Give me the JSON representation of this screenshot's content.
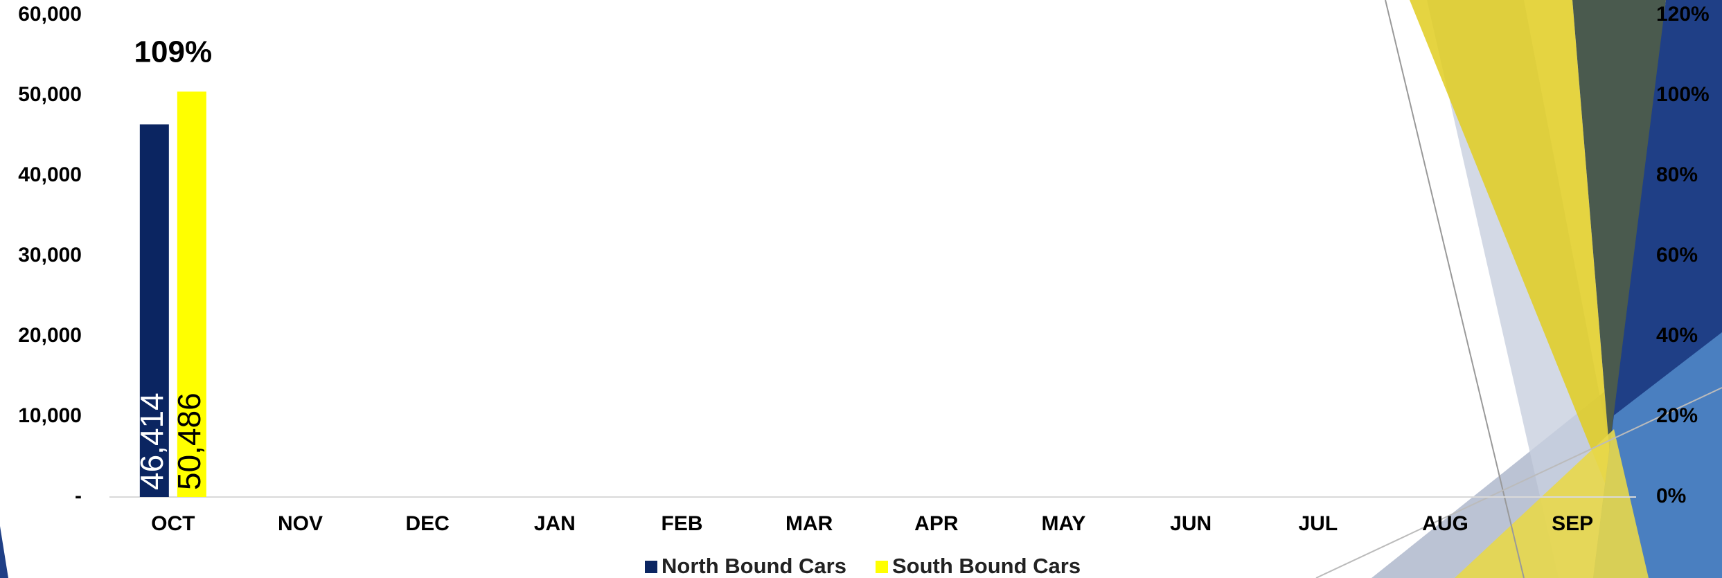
{
  "chart_data": {
    "type": "bar",
    "categories": [
      "OCT",
      "NOV",
      "DEC",
      "JAN",
      "FEB",
      "MAR",
      "APR",
      "MAY",
      "JUN",
      "JUL",
      "AUG",
      "SEP"
    ],
    "series": [
      {
        "name": "North Bound Cars",
        "color": "#0b2561",
        "values": [
          46414,
          null,
          null,
          null,
          null,
          null,
          null,
          null,
          null,
          null,
          null,
          null
        ],
        "value_labels": [
          "46,414",
          null,
          null,
          null,
          null,
          null,
          null,
          null,
          null,
          null,
          null,
          null
        ]
      },
      {
        "name": "South Bound Cars",
        "color": "#ffff00",
        "values": [
          50486,
          null,
          null,
          null,
          null,
          null,
          null,
          null,
          null,
          null,
          null,
          null
        ],
        "value_labels": [
          "50,486",
          null,
          null,
          null,
          null,
          null,
          null,
          null,
          null,
          null,
          null,
          null
        ]
      }
    ],
    "ratio": {
      "axis": "y2",
      "values": [
        109,
        null,
        null,
        null,
        null,
        null,
        null,
        null,
        null,
        null,
        null,
        null
      ],
      "value_labels": [
        "109%",
        null,
        null,
        null,
        null,
        null,
        null,
        null,
        null,
        null,
        null,
        null
      ]
    },
    "ylim": [
      0,
      60000
    ],
    "yticks": [
      {
        "value": 0,
        "label": "-"
      },
      {
        "value": 10000,
        "label": "10,000"
      },
      {
        "value": 20000,
        "label": "20,000"
      },
      {
        "value": 30000,
        "label": "30,000"
      },
      {
        "value": 40000,
        "label": "40,000"
      },
      {
        "value": 50000,
        "label": "50,000"
      },
      {
        "value": 60000,
        "label": "60,000"
      }
    ],
    "y2lim": [
      0,
      120
    ],
    "y2ticks": [
      {
        "value": 0,
        "label": "0%"
      },
      {
        "value": 20,
        "label": "20%"
      },
      {
        "value": 40,
        "label": "40%"
      },
      {
        "value": 60,
        "label": "60%"
      },
      {
        "value": 80,
        "label": "80%"
      },
      {
        "value": 100,
        "label": "100%"
      },
      {
        "value": 120,
        "label": "120%"
      }
    ],
    "grid": false
  }
}
